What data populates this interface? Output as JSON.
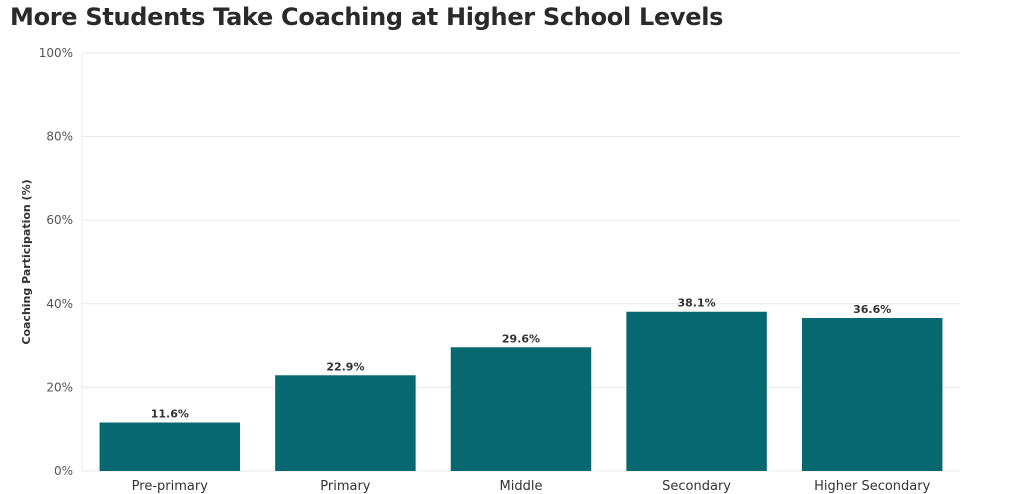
{
  "chart_data": {
    "type": "bar",
    "title": "More Students Take Coaching at Higher School Levels",
    "xlabel": "",
    "ylabel": "Coaching Participation (%)",
    "categories": [
      "Pre-primary",
      "Primary",
      "Middle",
      "Secondary",
      "Higher Secondary"
    ],
    "values": [
      11.6,
      22.9,
      29.6,
      38.1,
      36.6
    ],
    "data_labels": [
      "11.6%",
      "22.9%",
      "29.6%",
      "38.1%",
      "36.6%"
    ],
    "ylim": [
      0,
      100
    ],
    "yticks": [
      0,
      20,
      40,
      60,
      80,
      100
    ],
    "ytick_labels": [
      "0%",
      "20%",
      "40%",
      "60%",
      "80%",
      "100%"
    ],
    "grid": true,
    "legend": "none",
    "bar_color": "#07686f",
    "grid_color": "#e9e9e9"
  }
}
